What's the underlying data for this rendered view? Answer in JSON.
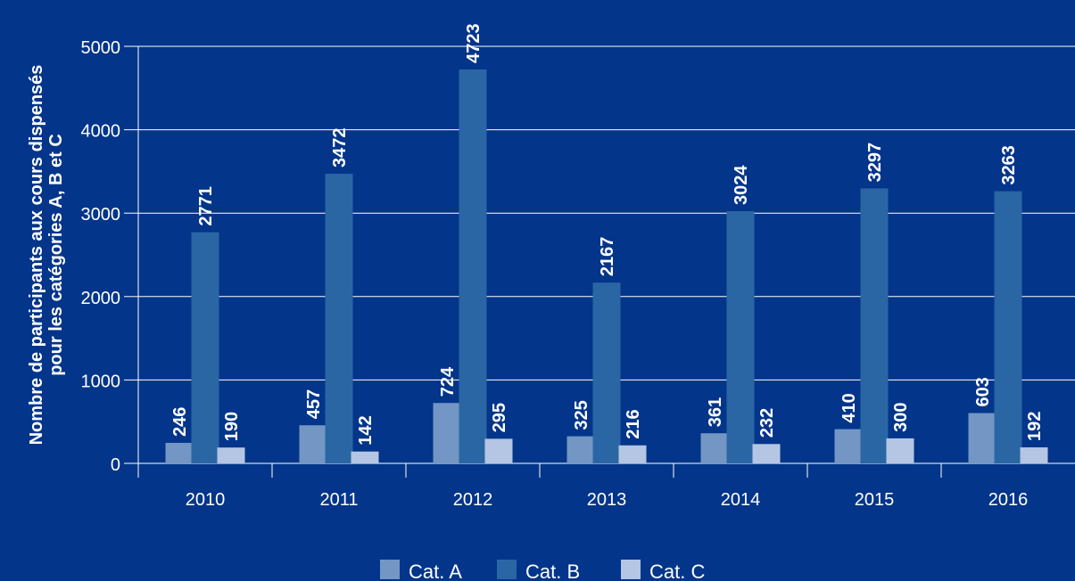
{
  "chart_data": {
    "type": "bar",
    "title": "",
    "xlabel": "",
    "ylabel": [
      "Nombre de participants aux cours dispensés",
      "pour les catégories A, B et C"
    ],
    "categories": [
      "2010",
      "2011",
      "2012",
      "2013",
      "2014",
      "2015",
      "2016"
    ],
    "series": [
      {
        "name": "Cat. A",
        "values": [
          246,
          457,
          724,
          325,
          361,
          410,
          603
        ],
        "color": "#7396c4"
      },
      {
        "name": "Cat. B",
        "values": [
          2771,
          3472,
          4723,
          2167,
          3024,
          3297,
          3263
        ],
        "color": "#2a66a4"
      },
      {
        "name": "Cat. C",
        "values": [
          190,
          142,
          295,
          216,
          232,
          300,
          192
        ],
        "color": "#b4c6e3"
      }
    ],
    "ylim": [
      0,
      5000
    ],
    "yticks": [
      0,
      1000,
      2000,
      3000,
      4000,
      5000
    ],
    "grid": true,
    "legend": "bottom",
    "colors": {
      "background": "#03358a",
      "text": "#ffffff",
      "gridline": "#ffffff"
    }
  }
}
